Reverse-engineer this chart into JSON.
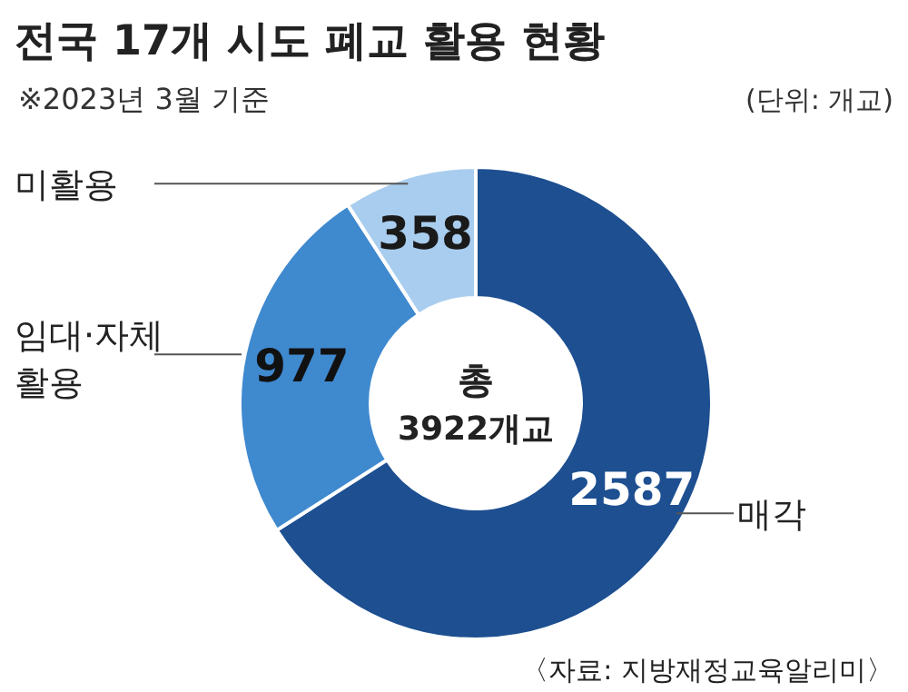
{
  "chart_data": {
    "type": "donut",
    "title": "전국 17개 시도 폐교 활용 현황",
    "subtitle": "※2023년 3월 기준",
    "categories": [
      "매각",
      "임대·자체 활용",
      "미활용"
    ],
    "values": [
      2587,
      977,
      358
    ],
    "colors": [
      "#1d4f91",
      "#3f89cf",
      "#a9cdee"
    ],
    "data_labels": true,
    "annotations": [
      "(단위: 개교)",
      "총",
      "3922개교",
      "〈자료: 지방재정교육알리미〉"
    ]
  }
}
